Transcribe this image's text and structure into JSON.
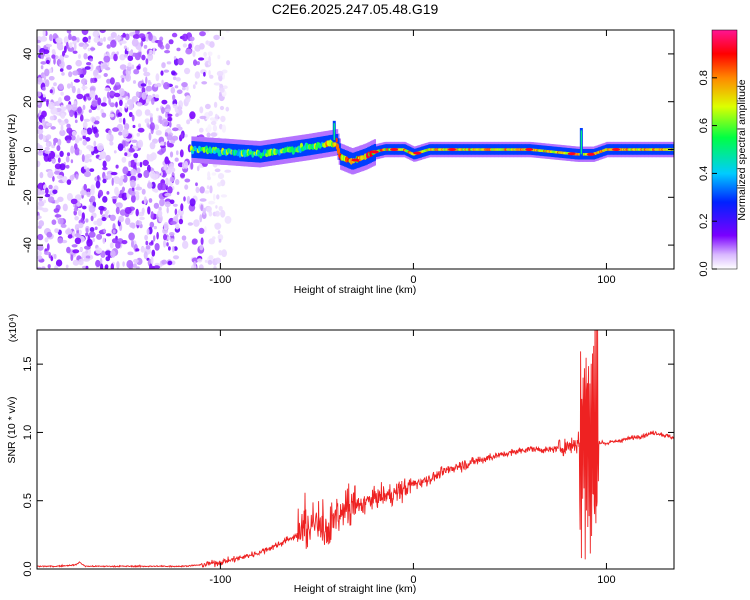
{
  "chart_data": [
    {
      "type": "heatmap",
      "title": "C2E6.2025.247.05.48.G19",
      "xlabel": "Height of straight line (km)",
      "ylabel": "Frequency (Hz)",
      "xlim": [
        -195,
        135
      ],
      "ylim": [
        -50,
        50
      ],
      "xticks": [
        -100,
        0,
        100
      ],
      "xtick_labels": [
        "-100",
        "0",
        "100"
      ],
      "yticks": [
        40,
        20,
        0,
        -20,
        -40
      ],
      "ytick_labels": [
        "40",
        "20",
        "0",
        "-20",
        "-40"
      ],
      "colorbar": {
        "label": "Normalized spectral amplitude",
        "range": [
          0,
          1
        ],
        "ticks": [
          0.0,
          0.2,
          0.4,
          0.6,
          0.8
        ],
        "tick_labels": [
          "0.0",
          "0.2",
          "0.4",
          "0.6",
          "0.8"
        ],
        "colormap": "rainbow (white-violet-blue-cyan-green-yellow-red-magenta)"
      },
      "features": [
        {
          "kind": "noise",
          "x_range": [
            -195,
            -108
          ],
          "freq_range": [
            -50,
            50
          ],
          "amplitude": "0.0-0.2"
        },
        {
          "kind": "signal_trace",
          "path": [
            [
              -115,
              0
            ],
            [
              -80,
              -2
            ],
            [
              -55,
              1
            ],
            [
              -40,
              3
            ],
            [
              -38,
              -3
            ],
            [
              -32,
              -5
            ],
            [
              -25,
              -3
            ],
            [
              -20,
              -1
            ],
            [
              -15,
              0
            ],
            [
              -5,
              0
            ],
            [
              0,
              -2
            ],
            [
              8,
              0
            ],
            [
              60,
              0
            ],
            [
              85,
              -2
            ],
            [
              93,
              -2
            ],
            [
              100,
              0
            ],
            [
              135,
              0
            ]
          ],
          "amplitude": "0.2-1.0"
        },
        {
          "kind": "spike",
          "x": -41,
          "freq_range": [
            3,
            12
          ]
        },
        {
          "kind": "spike",
          "x": 87,
          "freq_range": [
            -3,
            9
          ]
        }
      ]
    },
    {
      "type": "line",
      "title": "",
      "xlabel": "Height of straight line (km)",
      "ylabel": "SNR (10 * v/v)",
      "y_multiplier": "(x10⁴)",
      "xlim": [
        -195,
        135
      ],
      "ylim": [
        0,
        1.75
      ],
      "xticks": [
        -100,
        0,
        100
      ],
      "xtick_labels": [
        "-100",
        "0",
        "100"
      ],
      "yticks": [
        0.0,
        0.5,
        1.0,
        1.5
      ],
      "ytick_labels": [
        "0.0",
        "0.5",
        "1.0",
        "1.5"
      ],
      "series": [
        {
          "color": "#ee2222",
          "x": [
            -195,
            -185,
            -175,
            -173,
            -170,
            -160,
            -150,
            -140,
            -130,
            -120,
            -110,
            -100,
            -90,
            -80,
            -70,
            -60,
            -50,
            -45,
            -40,
            -30,
            -20,
            -10,
            0,
            10,
            20,
            30,
            40,
            50,
            60,
            70,
            80,
            85,
            88,
            90,
            92,
            94,
            96,
            100,
            110,
            120,
            125,
            130,
            135
          ],
          "y": [
            0.02,
            0.02,
            0.03,
            0.05,
            0.02,
            0.02,
            0.02,
            0.02,
            0.02,
            0.02,
            0.03,
            0.05,
            0.08,
            0.12,
            0.18,
            0.25,
            0.35,
            0.28,
            0.38,
            0.45,
            0.52,
            0.55,
            0.62,
            0.67,
            0.74,
            0.78,
            0.82,
            0.85,
            0.88,
            0.87,
            0.9,
            0.92,
            0.95,
            1.05,
            0.9,
            0.92,
            0.93,
            0.92,
            0.95,
            0.98,
            1.0,
            0.98,
            0.96
          ],
          "noise_ranges": [
            {
              "x_range": [
                -110,
                -60
              ],
              "amplitude": 0.03
            },
            {
              "x_range": [
                -60,
                -30
              ],
              "amplitude": 0.18
            },
            {
              "x_range": [
                -30,
                0
              ],
              "amplitude": 0.1
            },
            {
              "x_range": [
                0,
                40
              ],
              "amplitude": 0.05
            },
            {
              "x_range": [
                40,
                75
              ],
              "amplitude": 0.03
            },
            {
              "x_range": [
                75,
                86
              ],
              "amplitude": 0.08
            },
            {
              "x_range": [
                86,
                96
              ],
              "amplitude": 0.85
            },
            {
              "x_range": [
                96,
                135
              ],
              "amplitude": 0.02
            }
          ]
        }
      ]
    }
  ]
}
